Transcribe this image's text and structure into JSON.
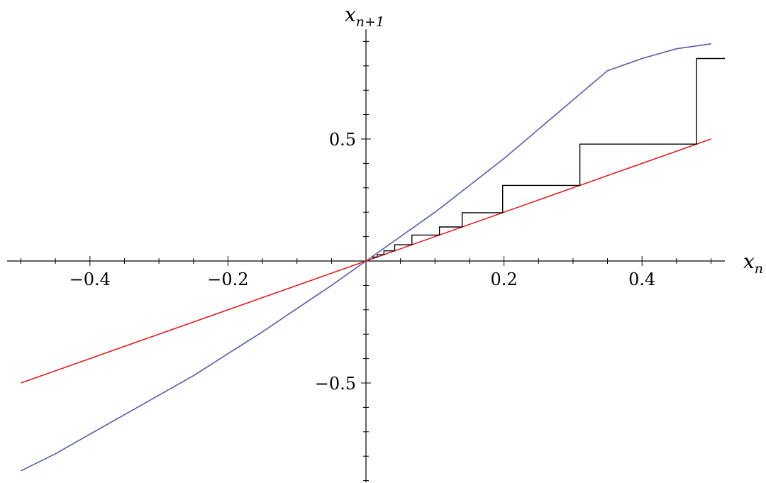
{
  "chart_data": {
    "type": "line",
    "xlim": [
      -0.52,
      0.52
    ],
    "ylim": [
      -0.9,
      0.95
    ],
    "axes": {
      "x_label": {
        "base": "x",
        "sub": "n"
      },
      "y_label": {
        "base": "x",
        "sub": "n+1"
      }
    },
    "x_ticks": [
      {
        "value": -0.4,
        "label": "−0.4"
      },
      {
        "value": -0.2,
        "label": "−0.2"
      },
      {
        "value": 0.2,
        "label": "0.2"
      },
      {
        "value": 0.4,
        "label": "0.4"
      }
    ],
    "y_ticks": [
      {
        "value": 0.5,
        "label": "0.5"
      },
      {
        "value": -0.5,
        "label": "−0.5"
      }
    ],
    "x_minor_step": 0.05,
    "y_minor_step": 0.1,
    "series": [
      {
        "color": "#5a5aa8",
        "x": [
          -0.5,
          -0.45,
          -0.4,
          -0.35,
          -0.3,
          -0.25,
          -0.2,
          -0.15,
          -0.1,
          -0.05,
          0,
          0.05,
          0.1,
          0.15,
          0.2,
          0.25,
          0.3,
          0.35,
          0.4,
          0.45,
          0.5
        ],
        "y": [
          -0.86,
          -0.79,
          -0.71,
          -0.63,
          -0.55,
          -0.47,
          -0.38,
          -0.29,
          -0.195,
          -0.1,
          0,
          0.1,
          0.2,
          0.31,
          0.42,
          0.54,
          0.66,
          0.78,
          0.83,
          0.87,
          0.89
        ]
      },
      {
        "color": "#e02020",
        "x": [
          -0.5,
          0.5
        ],
        "y": [
          -0.5,
          0.5
        ]
      }
    ],
    "cobweb": {
      "color": "#000000",
      "points": [
        [
          0.0102,
          0.0102
        ],
        [
          0.0102,
          0.0163
        ],
        [
          0.0163,
          0.0163
        ],
        [
          0.0163,
          0.026
        ],
        [
          0.026,
          0.026
        ],
        [
          0.026,
          0.0416
        ],
        [
          0.0416,
          0.0416
        ],
        [
          0.0416,
          0.0666
        ],
        [
          0.0666,
          0.0666
        ],
        [
          0.0666,
          0.1065
        ],
        [
          0.1065,
          0.1065
        ],
        [
          0.1065,
          0.1394
        ],
        [
          0.1394,
          0.1394
        ],
        [
          0.1394,
          0.198
        ],
        [
          0.198,
          0.198
        ],
        [
          0.198,
          0.31
        ],
        [
          0.31,
          0.31
        ],
        [
          0.31,
          0.479
        ],
        [
          0.479,
          0.479
        ],
        [
          0.479,
          0.83
        ],
        [
          0.52,
          0.83
        ]
      ]
    }
  }
}
